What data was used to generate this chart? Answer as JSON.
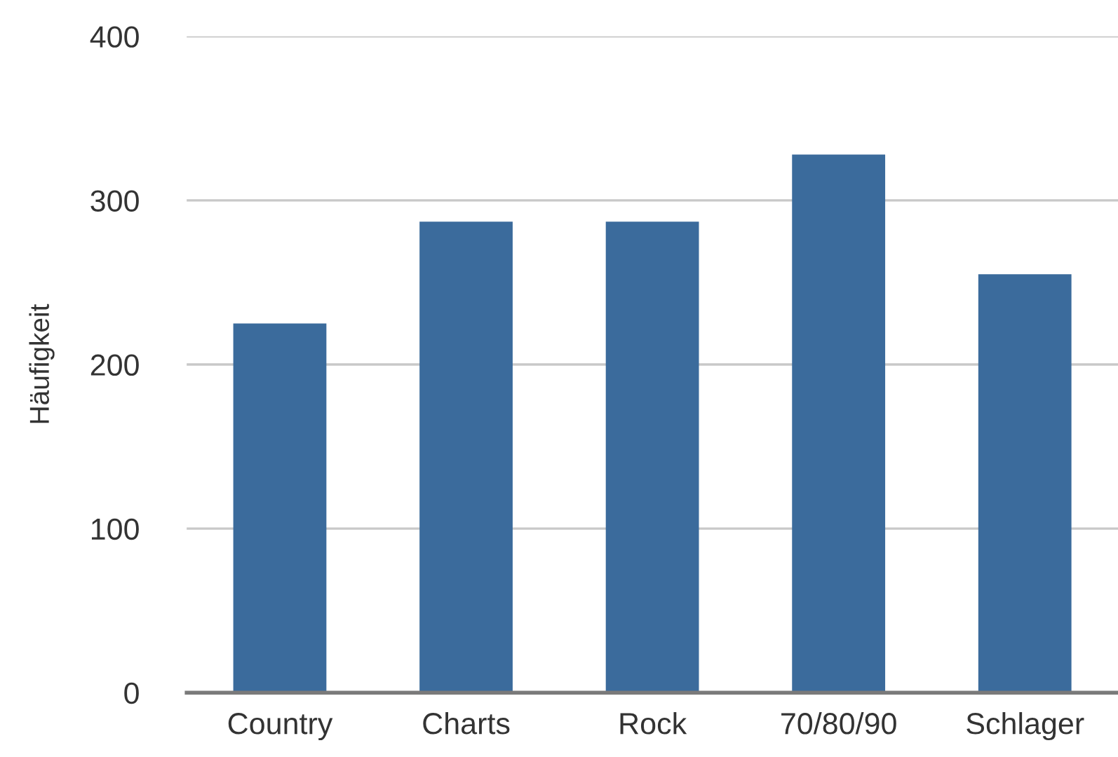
{
  "chart_data": {
    "type": "bar",
    "ylabel": "Häufigkeit",
    "categories": [
      "Country",
      "Charts",
      "Rock",
      "70/80/90",
      "Schlager"
    ],
    "values": [
      225,
      287,
      287,
      328,
      255
    ],
    "color": "#3b6b9c",
    "ylim": [
      0,
      400
    ],
    "yticks": [
      0,
      100,
      200,
      300,
      400
    ],
    "grid": "y"
  }
}
